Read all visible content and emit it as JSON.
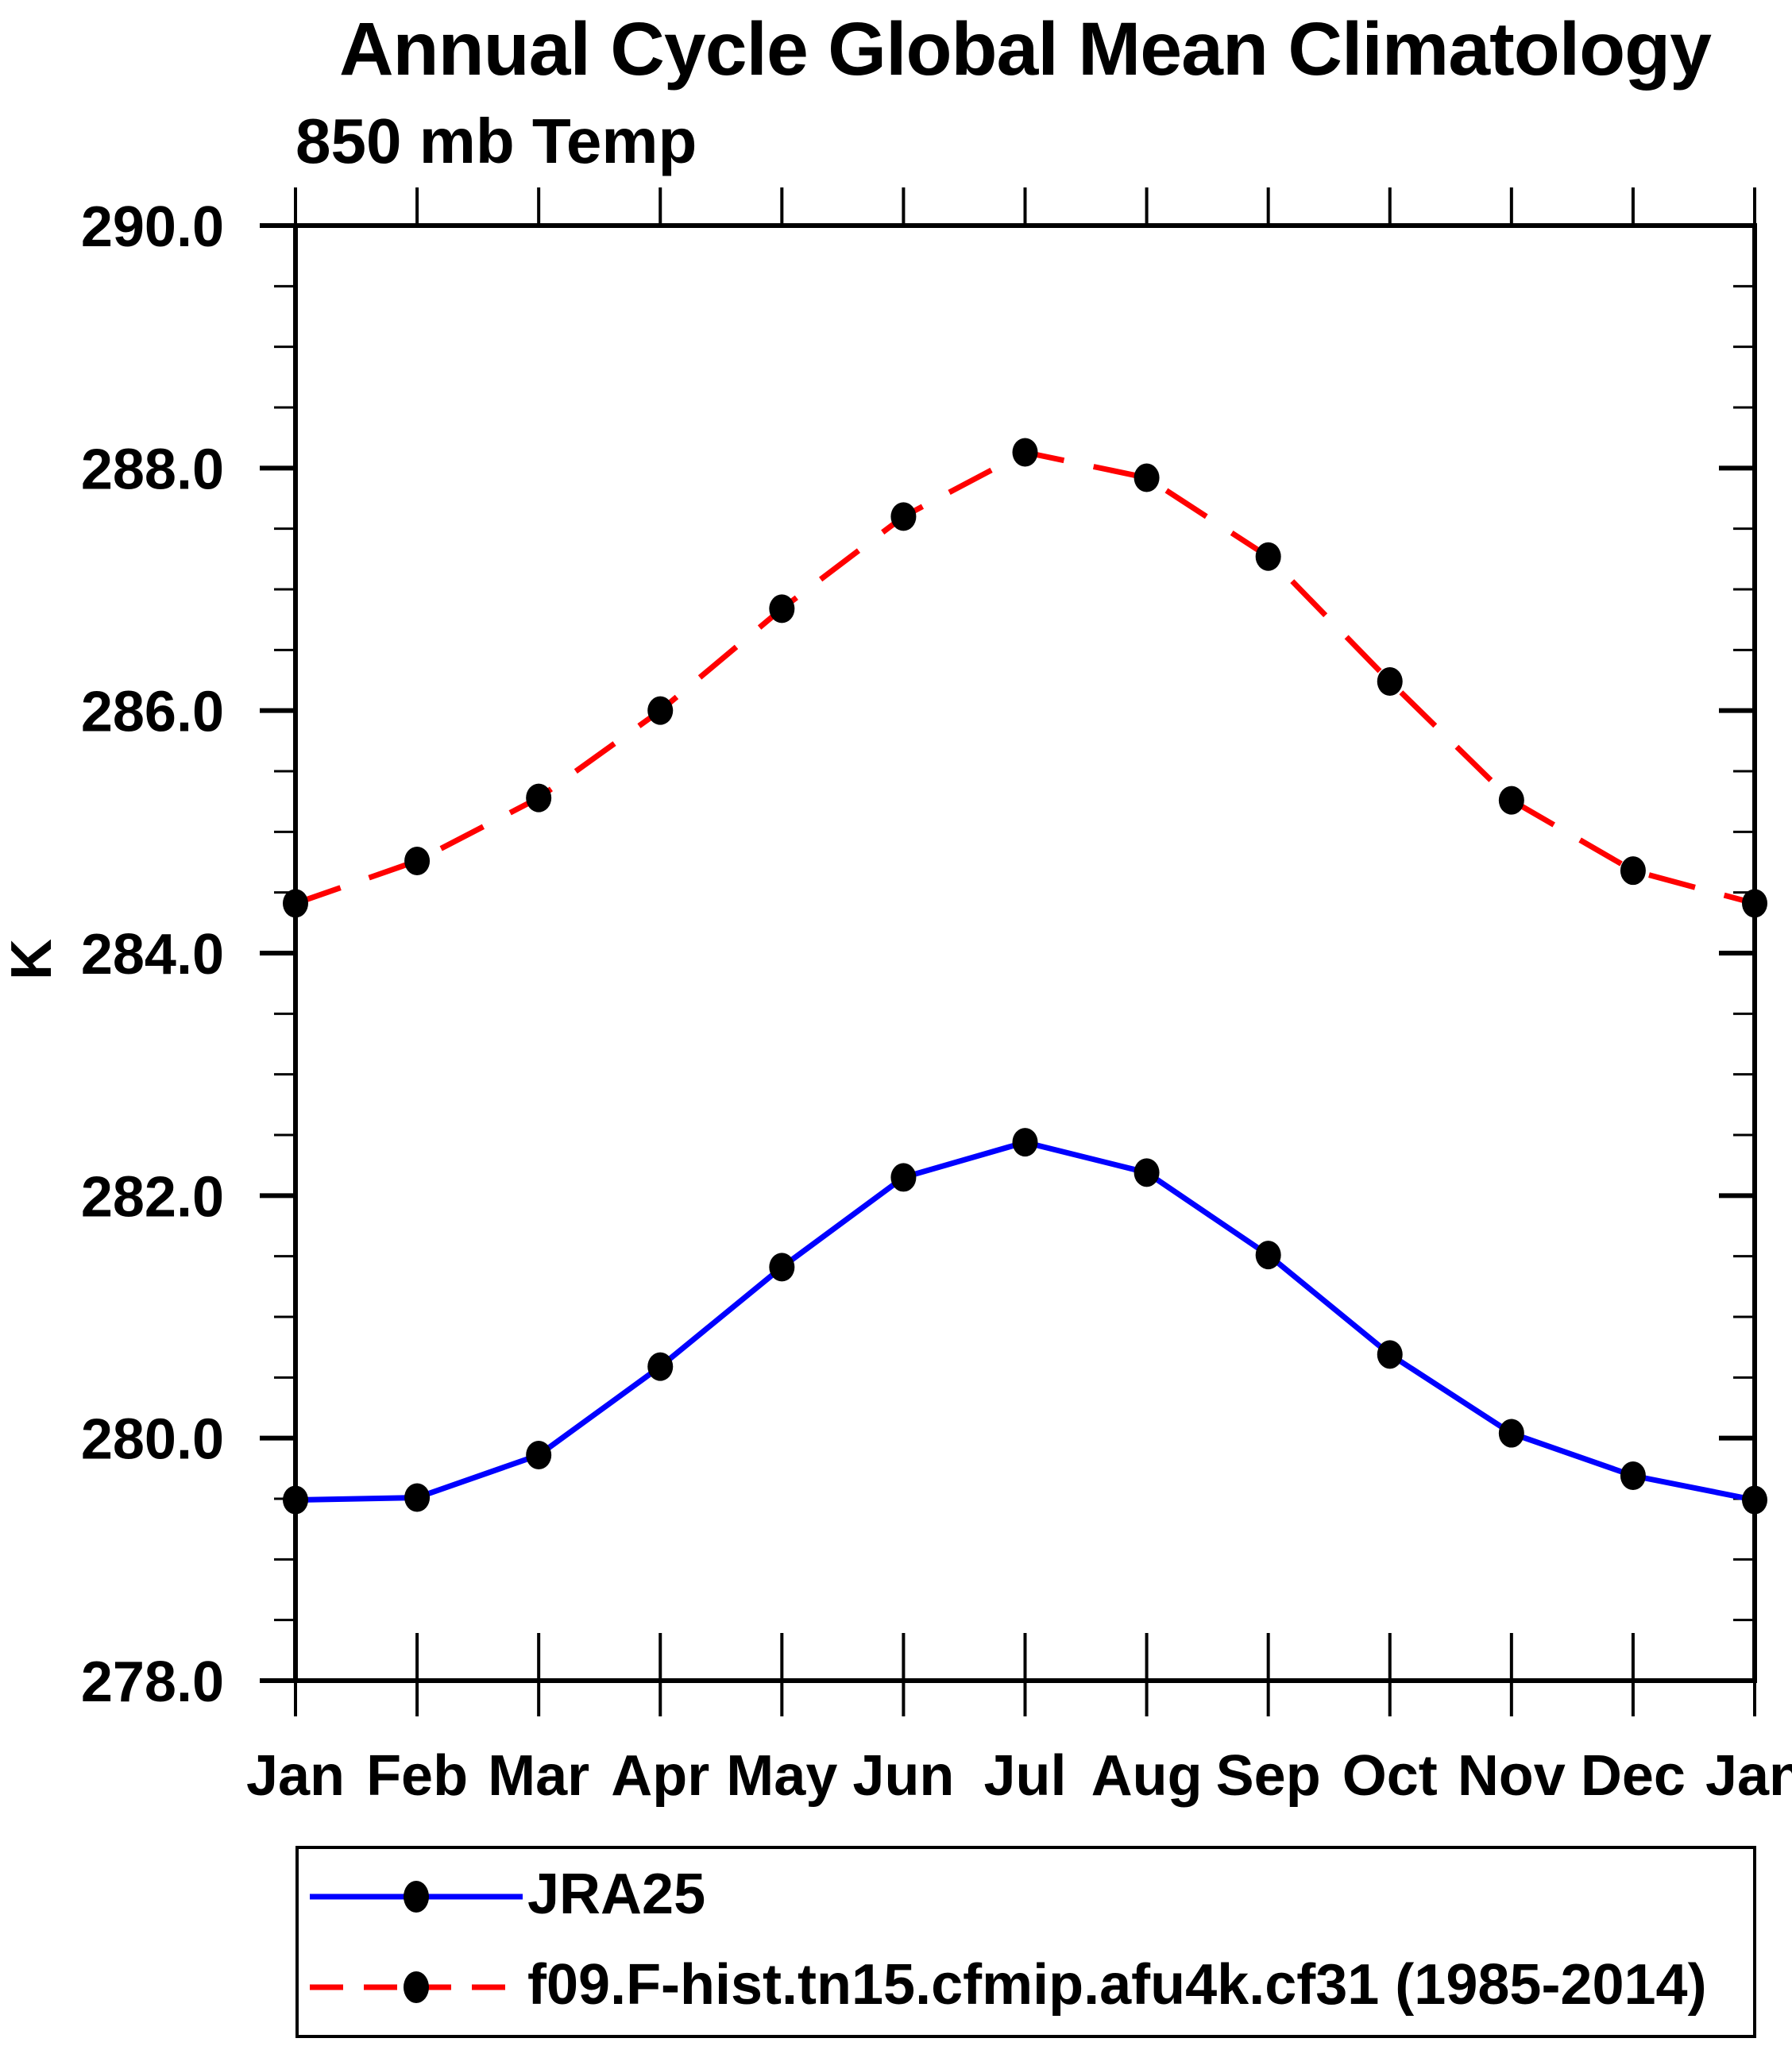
{
  "chart_data": {
    "type": "line",
    "title": "Annual Cycle Global Mean Climatology",
    "subtitle": "850 mb Temp",
    "ylabel": "K",
    "xlabel": "",
    "categories": [
      "Jan",
      "Feb",
      "Mar",
      "Apr",
      "May",
      "Jun",
      "Jul",
      "Aug",
      "Sep",
      "Oct",
      "Nov",
      "Dec",
      "Jan"
    ],
    "y_axis": {
      "min": 278.0,
      "max": 290.0,
      "major_step": 2.0,
      "minor_step": 0.5,
      "major_tick_labels": [
        "278.0",
        "280.0",
        "282.0",
        "284.0",
        "286.0",
        "288.0",
        "290.0"
      ]
    },
    "grid": false,
    "legend_position": "bottom",
    "marker_color": "#000000",
    "axis_color": "#000000",
    "series": [
      {
        "name": "JRA25",
        "color": "#0000ff",
        "line_style": "solid",
        "marker": "filled-circle",
        "values": [
          279.49,
          279.51,
          279.86,
          280.59,
          281.41,
          282.15,
          282.44,
          282.19,
          281.51,
          280.69,
          280.04,
          279.69,
          279.49
        ]
      },
      {
        "name": "f09.F-hist.tn15.cfmip.afu4k.cf31 (1985-2014)",
        "color": "#ff0000",
        "line_style": "dashed",
        "marker": "filled-circle",
        "values": [
          284.41,
          284.76,
          285.28,
          286.0,
          286.84,
          287.6,
          288.13,
          287.92,
          287.27,
          286.24,
          285.26,
          284.68,
          284.41
        ]
      }
    ]
  }
}
